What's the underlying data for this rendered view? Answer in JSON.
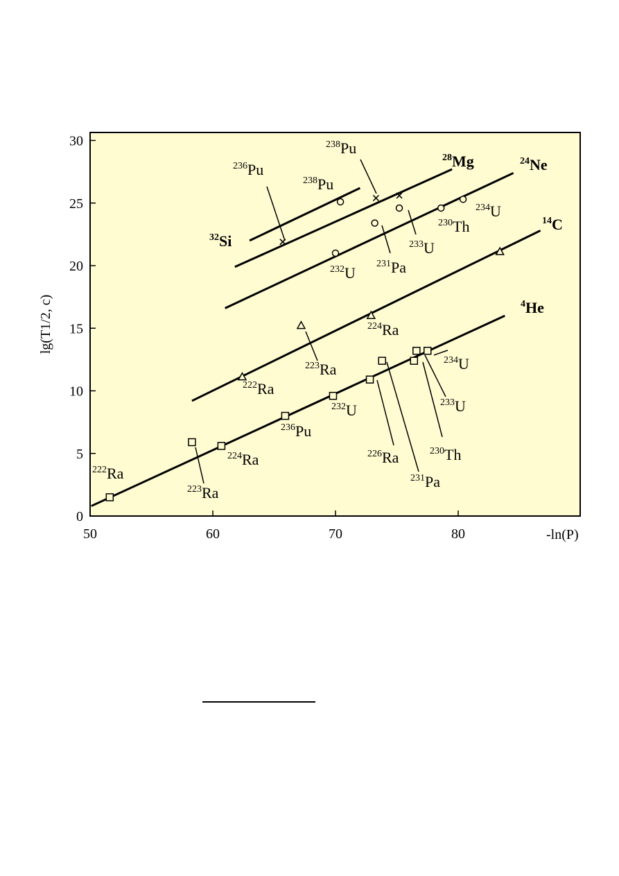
{
  "chart_data": {
    "type": "scatter",
    "xlabel": "-ln(P)",
    "ylabel": "lg(T1/2, c)",
    "xlim": [
      50,
      90
    ],
    "ylim": [
      0,
      30
    ],
    "x_ticks": [
      50,
      60,
      70,
      80
    ],
    "y_ticks": [
      0,
      5,
      10,
      15,
      20,
      25,
      30
    ],
    "background": "#fffcd2",
    "grid": false,
    "series": [
      {
        "name": "4He",
        "sup": "4",
        "base": "He",
        "marker": "square",
        "line": [
          [
            50.1,
            0.8
          ],
          [
            83.8,
            16.0
          ]
        ],
        "points": [
          {
            "x": 51.6,
            "y": 1.5,
            "sup": "222",
            "base": "Ra"
          },
          {
            "x": 58.3,
            "y": 5.9,
            "sup": "223",
            "base": "Ra"
          },
          {
            "x": 60.7,
            "y": 5.6,
            "sup": "224",
            "base": "Ra"
          },
          {
            "x": 65.9,
            "y": 8.0,
            "sup": "236",
            "base": "Pu"
          },
          {
            "x": 69.8,
            "y": 9.6,
            "sup": "232",
            "base": "U"
          },
          {
            "x": 72.8,
            "y": 10.9,
            "sup": "226",
            "base": "Ra"
          },
          {
            "x": 73.8,
            "y": 12.4,
            "sup": "231",
            "base": "Pa"
          },
          {
            "x": 76.4,
            "y": 12.4,
            "sup": "230",
            "base": "Th"
          },
          {
            "x": 76.6,
            "y": 13.2,
            "sup": "233",
            "base": "U"
          },
          {
            "x": 77.5,
            "y": 13.2,
            "sup": "234",
            "base": "U"
          }
        ]
      },
      {
        "name": "14C",
        "sup": "14",
        "base": "C",
        "marker": "triangle",
        "line": [
          [
            58.3,
            9.2
          ],
          [
            86.7,
            22.8
          ]
        ],
        "points": [
          {
            "x": 62.4,
            "y": 11.1,
            "sup": "222",
            "base": "Ra"
          },
          {
            "x": 67.2,
            "y": 15.2,
            "sup": "223",
            "base": "Ra"
          },
          {
            "x": 72.9,
            "y": 16.0,
            "sup": "224",
            "base": "Ra"
          },
          {
            "x": 83.4,
            "y": 21.1,
            "sup": "",
            "base": ""
          }
        ]
      },
      {
        "name": "24Ne",
        "sup": "24",
        "base": "Ne",
        "marker": "circle",
        "line": [
          [
            61.0,
            16.6
          ],
          [
            84.5,
            27.4
          ]
        ],
        "points": [
          {
            "x": 70.0,
            "y": 21.0,
            "sup": "232",
            "base": "U"
          },
          {
            "x": 73.2,
            "y": 23.4,
            "sup": "231",
            "base": "Pa"
          },
          {
            "x": 75.2,
            "y": 24.6,
            "sup": "233",
            "base": "U"
          },
          {
            "x": 78.6,
            "y": 24.6,
            "sup": "230",
            "base": "Th"
          },
          {
            "x": 80.4,
            "y": 25.3,
            "sup": "234",
            "base": "U"
          }
        ]
      },
      {
        "name": "28Mg",
        "sup": "28",
        "base": "Mg",
        "marker": "x",
        "line": [
          [
            61.8,
            19.9
          ],
          [
            79.5,
            27.7
          ]
        ],
        "points": [
          {
            "x": 65.7,
            "y": 21.9,
            "sup": "236",
            "base": "Pu"
          },
          {
            "x": 73.3,
            "y": 25.4,
            "sup": "238",
            "base": "Pu"
          },
          {
            "x": 75.2,
            "y": 25.6,
            "sup": "",
            "base": ""
          }
        ]
      },
      {
        "name": "32Si",
        "sup": "32",
        "base": "Si",
        "marker": "circle",
        "line": [
          [
            63.0,
            22.0
          ],
          [
            72.0,
            26.2
          ]
        ],
        "points": [
          {
            "x": 70.4,
            "y": 25.1,
            "sup": "238",
            "base": "Pu"
          }
        ]
      }
    ]
  }
}
